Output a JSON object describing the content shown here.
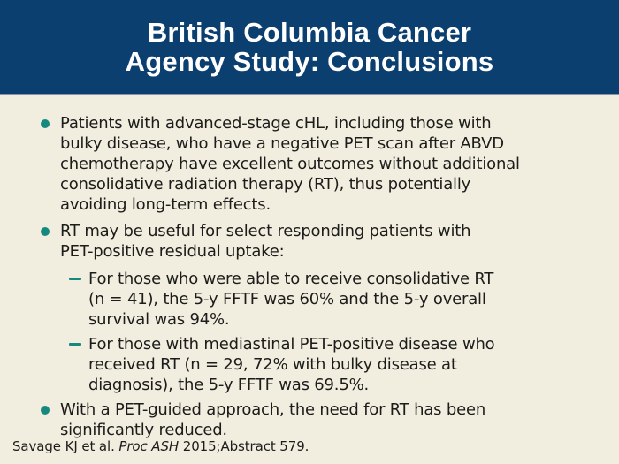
{
  "theme": {
    "colors": {
      "header_bg": "#0b3f70",
      "header_divider": "#8795aa",
      "title_text": "#ffffff",
      "body_bg": "#f1eee0",
      "body_text": "#1c1c1a",
      "bullet_accent": "#16897e"
    }
  },
  "slide": {
    "title_lines": [
      "British Columbia Cancer",
      "Agency Study: Conclusions"
    ],
    "bullets": [
      {
        "level": 1,
        "marker": "disc",
        "text": "Patients with advanced-stage cHL, including those with\nbulky disease, who have a negative PET scan after ABVD\nchemotherapy have excellent outcomes without additional\nconsolidative radiation therapy (RT), thus potentially\navoiding long-term effects."
      },
      {
        "level": 1,
        "marker": "disc",
        "text": "RT may be useful for select responding patients with\nPET-positive residual uptake:"
      },
      {
        "level": 2,
        "marker": "dash",
        "text": "For those who were able to receive consolidative RT\n(n = 41), the 5-y FFTF was 60% and the 5-y overall\nsurvival was 94%."
      },
      {
        "level": 2,
        "marker": "dash",
        "text": "For those with mediastinal PET-positive disease who\nreceived RT (n = 29, 72% with bulky disease at\ndiagnosis), the 5-y FFTF was 69.5%."
      },
      {
        "level": 1,
        "marker": "disc",
        "text": "With a PET-guided approach, the need for RT has been\nsignificantly reduced."
      }
    ],
    "citation": {
      "prefix": "Savage KJ et al. ",
      "italic_part": "Proc ASH",
      "suffix": " 2015;Abstract 579."
    }
  }
}
